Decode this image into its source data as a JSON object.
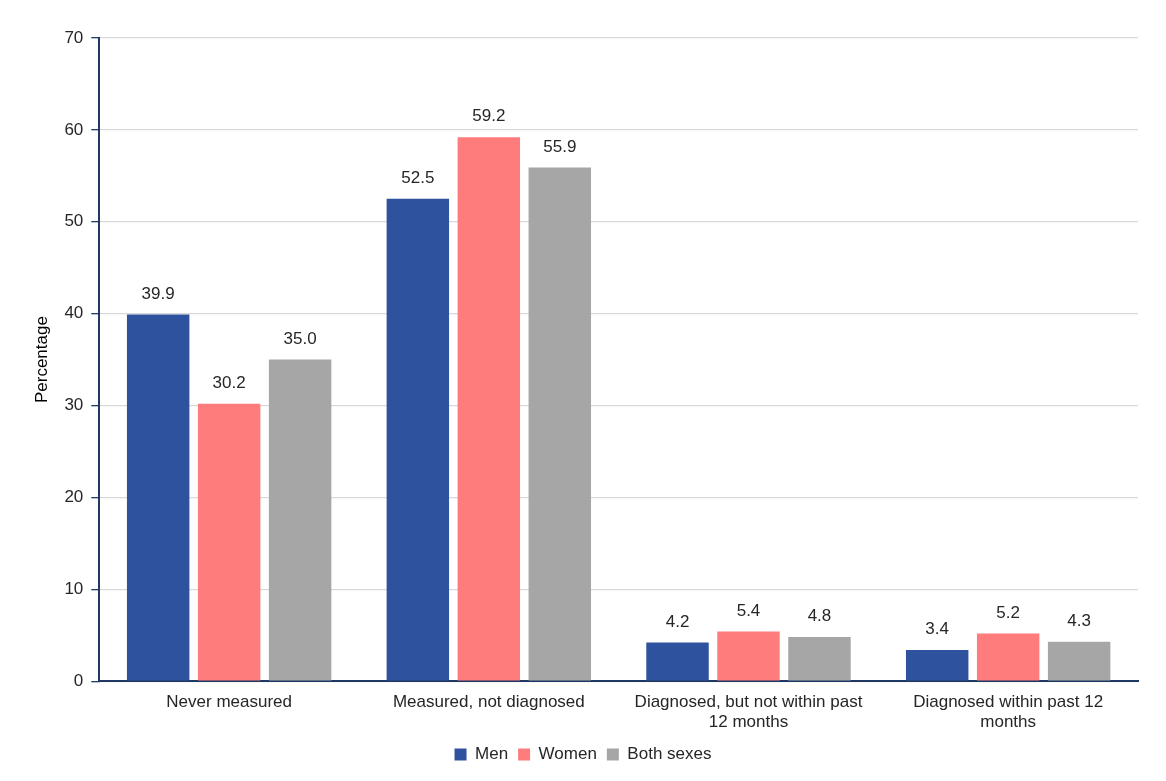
{
  "chart_data": {
    "type": "bar",
    "ylabel": "Percentage",
    "categories": [
      "Never measured",
      "Measured, not diagnosed",
      "Diagnosed, but not within past 12 months",
      "Diagnosed within past 12 months"
    ],
    "series": [
      {
        "name": "Men",
        "color": "#2f529e",
        "values": [
          39.9,
          52.5,
          4.2,
          3.4
        ],
        "value_labels": [
          "39.9",
          "52.5",
          "4.2",
          "3.4"
        ]
      },
      {
        "name": "Women",
        "color": "#ff7c7c",
        "values": [
          30.2,
          59.2,
          5.4,
          5.2
        ],
        "value_labels": [
          "30.2",
          "59.2",
          "5.4",
          "5.2"
        ]
      },
      {
        "name": "Both sexes",
        "color": "#a6a6a6",
        "values": [
          35.0,
          55.9,
          4.8,
          4.3
        ],
        "value_labels": [
          "35.0",
          "55.9",
          "4.8",
          "4.3"
        ]
      }
    ],
    "ylim": [
      0,
      70
    ],
    "yticks": [
      0,
      10,
      20,
      30,
      40,
      50,
      60,
      70
    ],
    "grid": "y",
    "legend": "bottom"
  }
}
